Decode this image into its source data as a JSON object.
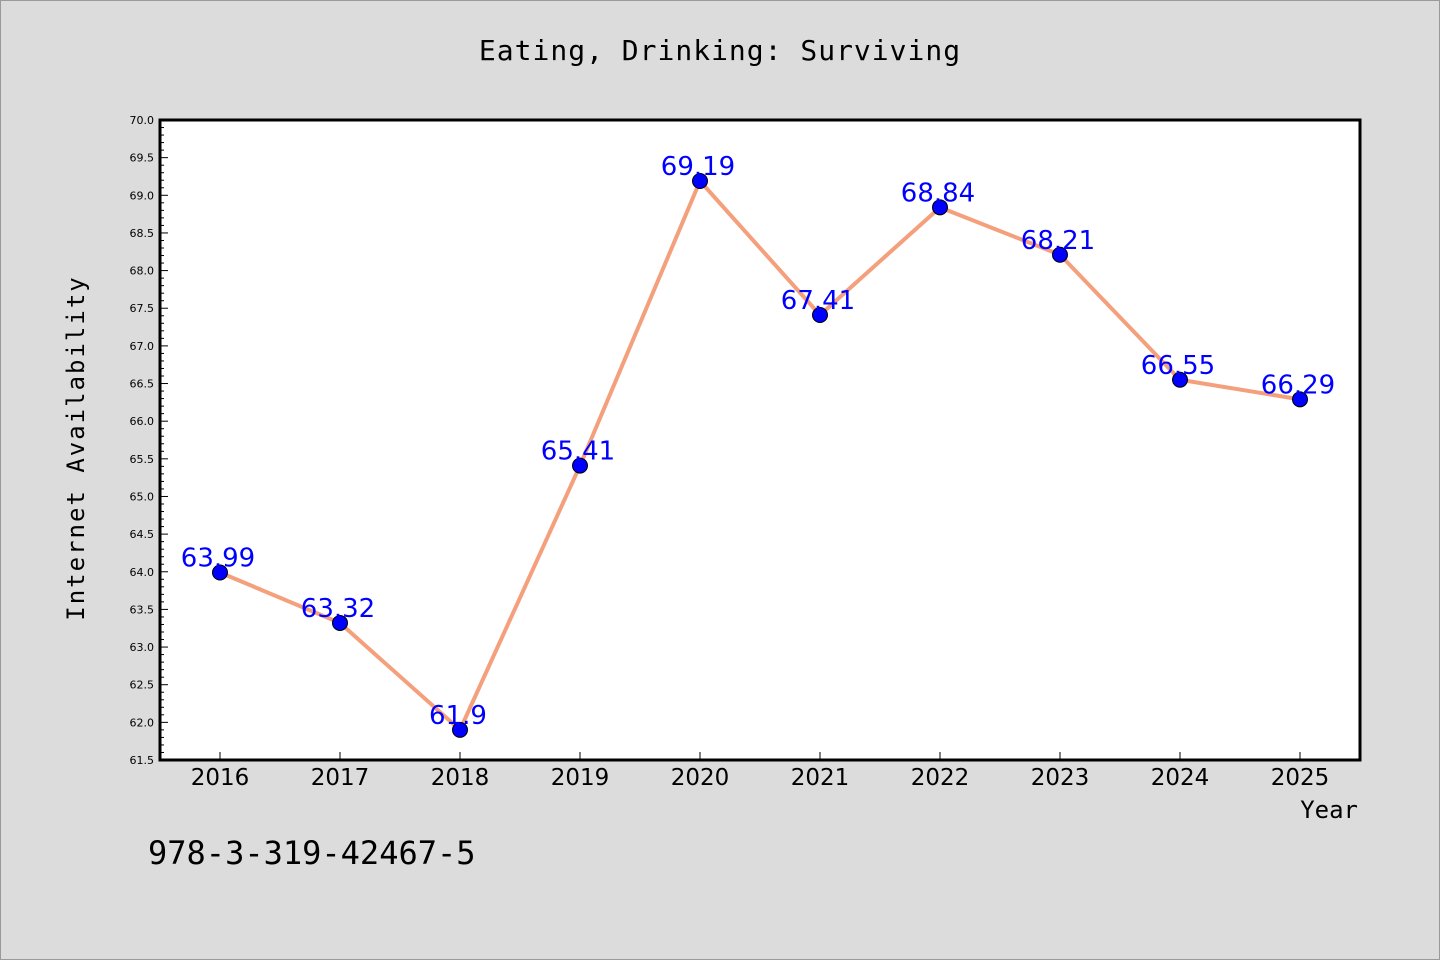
{
  "chart_data": {
    "type": "line",
    "title": "Eating, Drinking: Surviving",
    "xlabel": "Year",
    "ylabel": "Internet Availability",
    "categories": [
      "2016",
      "2017",
      "2018",
      "2019",
      "2020",
      "2021",
      "2022",
      "2023",
      "2024",
      "2025"
    ],
    "series": [
      {
        "values": [
          63.99,
          63.32,
          61.9,
          65.41,
          69.19,
          67.41,
          68.84,
          68.21,
          66.55,
          66.29
        ],
        "line_color": "#f4a07c",
        "marker_color": "#0000ff",
        "label_color": "#0000ff"
      }
    ],
    "data_labels": [
      "63.99",
      "63.32",
      "61.9",
      "65.41",
      "69.19",
      "67.41",
      "68.84",
      "68.21",
      "66.55",
      "66.29"
    ],
    "ylim": [
      61.5,
      70.0
    ],
    "yticks": [
      "61.5",
      "62.0",
      "62.5",
      "63.0",
      "63.5",
      "64.0",
      "64.5",
      "65.0",
      "65.5",
      "66.0",
      "66.5",
      "67.0",
      "67.5",
      "68.0",
      "68.5",
      "69.0",
      "69.5",
      "70.0"
    ],
    "grid": false,
    "legend": "none"
  },
  "annotation": "978-3-319-42467-5"
}
